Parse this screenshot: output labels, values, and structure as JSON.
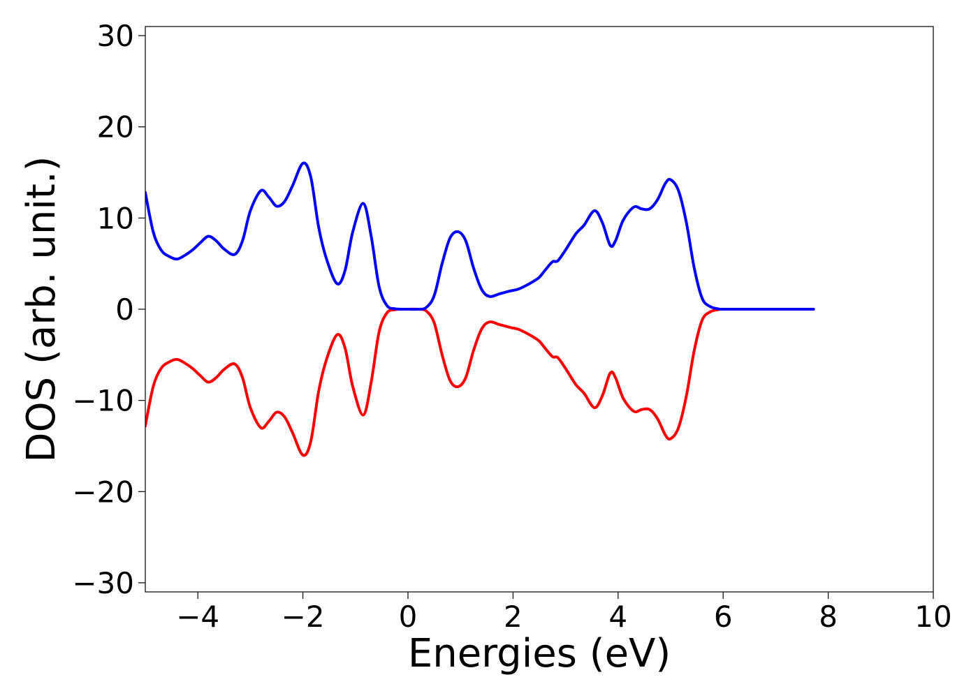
{
  "chart_data": {
    "type": "line",
    "title": "",
    "xlabel": "Energies (eV)",
    "ylabel": "DOS (arb. unit.)",
    "xlim": [
      -5,
      10
    ],
    "ylim": [
      -31,
      31
    ],
    "xticks": [
      -4,
      -2,
      0,
      2,
      4,
      6,
      8,
      10
    ],
    "yticks": [
      -30,
      -20,
      -10,
      0,
      10,
      20,
      30
    ],
    "xtick_labels": [
      "−4",
      "−2",
      "0",
      "2",
      "4",
      "6",
      "8",
      "10"
    ],
    "ytick_labels": [
      "−30",
      "−20",
      "−10",
      "0",
      "10",
      "20",
      "30"
    ],
    "grid": false,
    "legend": "none",
    "series": [
      {
        "color": "#0000ff",
        "x": [
          -5.0,
          -4.85,
          -4.7,
          -4.55,
          -4.4,
          -4.25,
          -4.1,
          -3.95,
          -3.8,
          -3.65,
          -3.5,
          -3.3,
          -3.15,
          -3.0,
          -2.8,
          -2.65,
          -2.5,
          -2.35,
          -2.2,
          -2.0,
          -1.85,
          -1.7,
          -1.55,
          -1.35,
          -1.2,
          -1.05,
          -0.85,
          -0.7,
          -0.55,
          -0.4,
          -0.25,
          -0.1,
          0.0,
          0.2,
          0.35,
          0.5,
          0.65,
          0.8,
          0.95,
          1.1,
          1.25,
          1.4,
          1.55,
          1.75,
          1.95,
          2.1,
          2.25,
          2.4,
          2.5,
          2.6,
          2.75,
          2.85,
          3.0,
          3.2,
          3.35,
          3.55,
          3.7,
          3.85,
          3.95,
          4.1,
          4.3,
          4.45,
          4.6,
          4.75,
          4.9,
          5.0,
          5.15,
          5.3,
          5.45,
          5.6,
          5.75,
          5.9,
          6.0,
          6.5,
          7.0,
          7.5,
          7.72
        ],
        "values": [
          12.8,
          8.5,
          6.5,
          5.8,
          5.5,
          5.9,
          6.5,
          7.3,
          8.0,
          7.5,
          6.6,
          6.0,
          7.5,
          10.8,
          13.0,
          12.3,
          11.3,
          11.8,
          13.5,
          16.0,
          14.5,
          9.0,
          5.5,
          2.8,
          4.2,
          8.5,
          11.6,
          8.0,
          2.5,
          0.4,
          0.05,
          0.0,
          0.0,
          0.0,
          0.2,
          1.5,
          5.0,
          7.8,
          8.5,
          7.5,
          4.5,
          2.2,
          1.4,
          1.7,
          2.0,
          2.2,
          2.6,
          3.1,
          3.5,
          4.2,
          5.2,
          5.3,
          6.5,
          8.3,
          9.2,
          10.8,
          9.5,
          7.0,
          7.5,
          9.8,
          11.2,
          11.0,
          11.0,
          12.0,
          13.8,
          14.2,
          13.0,
          9.5,
          4.5,
          1.2,
          0.3,
          0.05,
          0.0,
          0.0,
          0.0,
          0.0,
          0.0
        ]
      },
      {
        "color": "#ff0000",
        "x": [
          -5.0,
          -4.85,
          -4.7,
          -4.55,
          -4.4,
          -4.25,
          -4.1,
          -3.95,
          -3.8,
          -3.65,
          -3.5,
          -3.3,
          -3.15,
          -3.0,
          -2.8,
          -2.65,
          -2.5,
          -2.35,
          -2.2,
          -2.0,
          -1.85,
          -1.7,
          -1.55,
          -1.35,
          -1.2,
          -1.05,
          -0.85,
          -0.7,
          -0.55,
          -0.4,
          -0.25,
          -0.1,
          0.0,
          0.2,
          0.35,
          0.5,
          0.65,
          0.8,
          0.95,
          1.1,
          1.25,
          1.4,
          1.55,
          1.75,
          1.95,
          2.1,
          2.25,
          2.4,
          2.5,
          2.6,
          2.75,
          2.85,
          3.0,
          3.2,
          3.35,
          3.55,
          3.7,
          3.85,
          3.95,
          4.1,
          4.3,
          4.45,
          4.6,
          4.75,
          4.9,
          5.0,
          5.15,
          5.3,
          5.45,
          5.6,
          5.75,
          5.9,
          6.0,
          6.5,
          7.0,
          7.5,
          7.72
        ],
        "values": [
          -12.8,
          -8.5,
          -6.5,
          -5.8,
          -5.5,
          -5.9,
          -6.5,
          -7.3,
          -8.0,
          -7.5,
          -6.6,
          -6.0,
          -7.5,
          -10.8,
          -13.0,
          -12.3,
          -11.3,
          -11.8,
          -13.5,
          -16.0,
          -14.5,
          -9.0,
          -5.5,
          -2.8,
          -4.2,
          -8.5,
          -11.6,
          -8.0,
          -2.5,
          -0.4,
          -0.05,
          0.0,
          0.0,
          0.0,
          -0.2,
          -1.5,
          -5.0,
          -7.8,
          -8.5,
          -7.5,
          -4.5,
          -2.2,
          -1.4,
          -1.7,
          -2.0,
          -2.2,
          -2.6,
          -3.1,
          -3.5,
          -4.2,
          -5.2,
          -5.3,
          -6.5,
          -8.3,
          -9.2,
          -10.8,
          -9.5,
          -7.0,
          -7.5,
          -9.8,
          -11.2,
          -11.0,
          -11.0,
          -12.0,
          -13.8,
          -14.2,
          -13.0,
          -9.5,
          -4.5,
          -1.2,
          -0.3,
          -0.05,
          0.0,
          0.0,
          0.0,
          0.0,
          0.0
        ]
      }
    ]
  }
}
